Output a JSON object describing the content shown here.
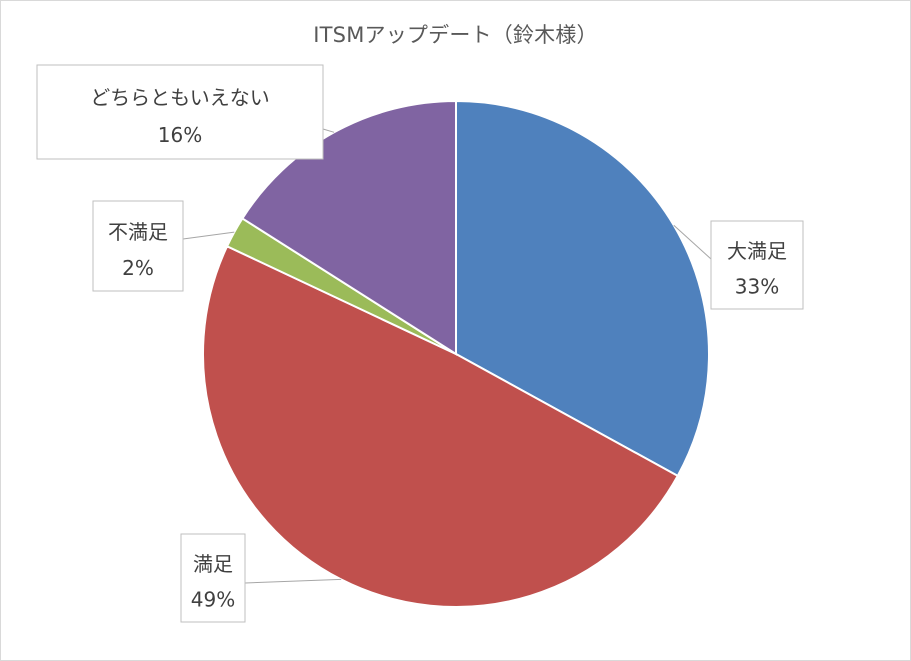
{
  "chart_data": {
    "type": "pie",
    "title": "ITSMアップデート（鈴木様）",
    "categories": [
      "大満足",
      "満足",
      "不満足",
      "どちらともいえない"
    ],
    "values": [
      33,
      49,
      2,
      16
    ],
    "labels": [
      "33%",
      "49%",
      "2%",
      "16%"
    ],
    "colors": [
      "#4f81bd",
      "#c0504d",
      "#9bbb59",
      "#8064a2"
    ],
    "legend": "none",
    "start_angle_deg": 0,
    "direction": "clockwise"
  }
}
